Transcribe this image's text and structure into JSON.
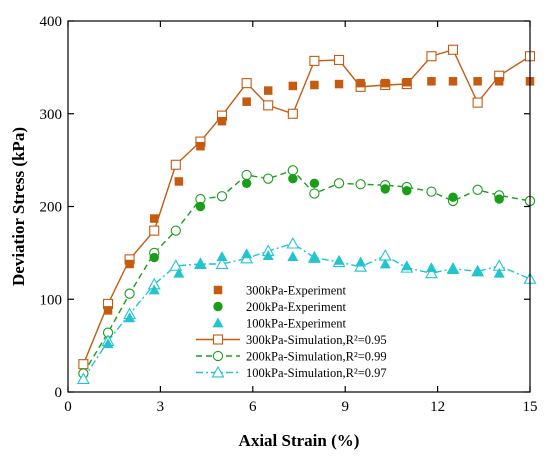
{
  "chart_data": {
    "type": "scatter",
    "xlabel": "Axial Strain (%)",
    "ylabel": "Deviatior Stress (kPa)",
    "xlim": [
      0,
      15
    ],
    "ylim": [
      0,
      400
    ],
    "xticks": [
      0,
      3,
      6,
      9,
      12,
      15
    ],
    "yticks": [
      0,
      100,
      200,
      300,
      400
    ],
    "grid": false,
    "legend_placement": "bottom-center",
    "series": [
      {
        "name": "300kPa-Experiment",
        "kind": "experiment",
        "marker": "square-filled",
        "color": "#c55a11",
        "x": [
          1.3,
          2.0,
          2.8,
          3.6,
          4.3,
          5.0,
          5.8,
          6.5,
          7.3,
          8.0,
          8.8,
          9.5,
          10.3,
          11.0,
          11.8,
          12.5,
          13.3,
          14.0,
          15.0
        ],
        "y": [
          88,
          138,
          187,
          227,
          265,
          292,
          313,
          325,
          330,
          331,
          332,
          333,
          333,
          334,
          335,
          335,
          335,
          335,
          335
        ]
      },
      {
        "name": "200kPa-Experiment",
        "kind": "experiment",
        "marker": "circle-filled",
        "color": "#1a9e1a",
        "x": [
          2.8,
          4.3,
          5.8,
          7.3,
          8.0,
          10.3,
          11.0,
          12.5,
          14.0
        ],
        "y": [
          145,
          200,
          225,
          230,
          225,
          219,
          217,
          210,
          208
        ]
      },
      {
        "name": "100kPa-Experiment",
        "kind": "experiment",
        "marker": "triangle-filled",
        "color": "#21c4cf",
        "x": [
          1.3,
          2.0,
          2.8,
          3.6,
          4.3,
          5.0,
          5.8,
          6.5,
          7.3,
          8.0,
          8.8,
          9.5,
          10.3,
          11.0,
          11.8,
          12.5,
          13.3,
          14.0
        ],
        "y": [
          52,
          80,
          110,
          128,
          138,
          146,
          149,
          147,
          146,
          144,
          142,
          140,
          138,
          136,
          134,
          132,
          130,
          128
        ]
      },
      {
        "name": "300kPa-Simulation,R²=0.95",
        "kind": "simulation",
        "marker": "square-open",
        "line": "solid",
        "color": "#c55a11",
        "x": [
          0.5,
          1.3,
          2.0,
          2.8,
          3.5,
          4.3,
          5.0,
          5.8,
          6.5,
          7.3,
          8.0,
          8.8,
          9.5,
          10.3,
          11.0,
          11.8,
          12.5,
          13.3,
          14.0,
          15.0
        ],
        "y": [
          30,
          95,
          143,
          174,
          245,
          270,
          298,
          333,
          309,
          300,
          357,
          358,
          329,
          331,
          332,
          362,
          369,
          312,
          341,
          362
        ]
      },
      {
        "name": "200kPa-Simulation,R²=0.99",
        "kind": "simulation",
        "marker": "circle-open",
        "line": "dashed",
        "color": "#1a9e1a",
        "x": [
          0.5,
          1.3,
          2.0,
          2.8,
          3.5,
          4.3,
          5.0,
          5.8,
          6.5,
          7.3,
          8.0,
          8.8,
          9.5,
          10.3,
          11.0,
          11.8,
          12.5,
          13.3,
          14.0,
          15.0
        ],
        "y": [
          20,
          64,
          106,
          150,
          174,
          208,
          211,
          234,
          230,
          239,
          214,
          225,
          224,
          223,
          221,
          216,
          206,
          218,
          212,
          206
        ]
      },
      {
        "name": "100kPa-Simulation,R²=0.97",
        "kind": "simulation",
        "marker": "triangle-open",
        "line": "dashdot",
        "color": "#21c4cf",
        "x": [
          0.5,
          1.3,
          2.0,
          2.8,
          3.5,
          4.3,
          5.0,
          5.8,
          6.5,
          7.3,
          8.0,
          8.8,
          9.5,
          10.3,
          11.0,
          11.8,
          12.5,
          13.3,
          14.0,
          15.0
        ],
        "y": [
          14,
          55,
          84,
          116,
          136,
          138,
          138,
          144,
          152,
          160,
          145,
          140,
          135,
          147,
          134,
          128,
          133,
          130,
          136,
          122
        ]
      }
    ]
  }
}
